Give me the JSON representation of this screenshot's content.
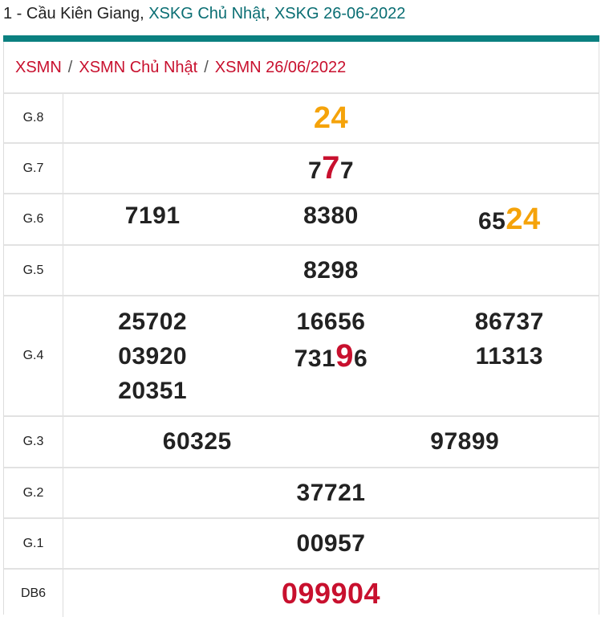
{
  "header": {
    "prefix": "1 - Cầu Kiên Giang, ",
    "link1": "XSKG Chủ Nhật",
    "comma": ", ",
    "link2": "XSKG 26-06-2022",
    "accent": "#0b8080"
  },
  "breadcrumb": {
    "items": [
      "XSMN",
      "XSMN Chủ Nhật",
      "XSMN 26/06/2022"
    ],
    "separator": "/"
  },
  "prizes": {
    "g8": {
      "label": "G.8",
      "value": "24"
    },
    "g7": {
      "label": "G.7",
      "value": {
        "pre": "7",
        "hl": "7",
        "post": "7"
      }
    },
    "g6": {
      "label": "G.6",
      "values": [
        "7191",
        "8380"
      ],
      "third": {
        "pre": "65",
        "hl": "24"
      }
    },
    "g5": {
      "label": "G.5",
      "value": "8298"
    },
    "g4": {
      "label": "G.4",
      "col1": [
        "25702",
        "03920",
        "20351"
      ],
      "col2a": "16656",
      "col2b": {
        "pre": "731",
        "hl": "9",
        "post": "6"
      },
      "col3": [
        "86737",
        "11313"
      ]
    },
    "g3": {
      "label": "G.3",
      "values": [
        "60325",
        "97899"
      ]
    },
    "g2": {
      "label": "G.2",
      "value": "37721"
    },
    "g1": {
      "label": "G.1",
      "value": "00957"
    },
    "db": {
      "label": "DB6",
      "value": "099904"
    }
  }
}
